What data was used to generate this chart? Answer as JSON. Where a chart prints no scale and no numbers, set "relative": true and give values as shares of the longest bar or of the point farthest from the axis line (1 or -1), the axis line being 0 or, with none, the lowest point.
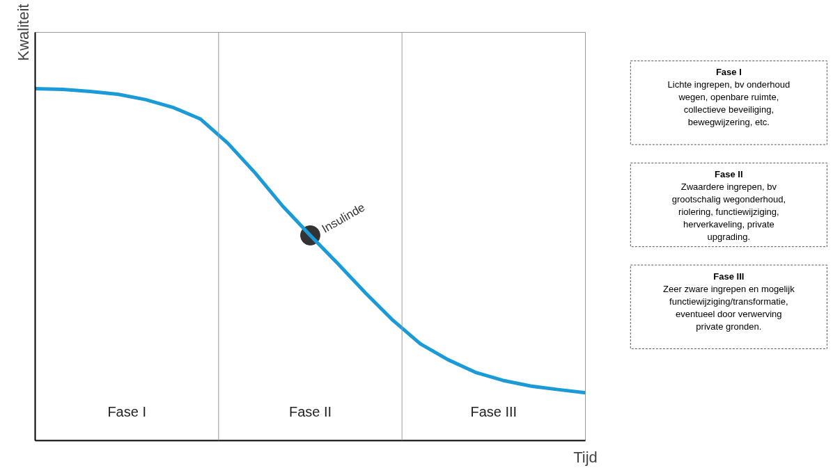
{
  "chart_data": {
    "type": "line",
    "relative": true,
    "xlabel": "Tijd",
    "ylabel": "Kwaliteit",
    "grid": false,
    "marker": "none",
    "line_style": "solid",
    "categories": [
      null,
      null,
      null,
      null,
      null,
      null,
      null,
      null,
      null,
      null,
      null,
      null,
      null,
      null,
      null,
      null,
      null,
      null,
      null,
      null,
      null
    ],
    "series": [
      {
        "color": "#1a9ad6",
        "values": [
          1.0,
          0.998,
          0.992,
          0.984,
          0.969,
          0.947,
          0.914,
          0.845,
          0.76,
          0.666,
          0.583,
          0.503,
          0.42,
          0.342,
          0.275,
          0.23,
          0.194,
          0.171,
          0.155,
          0.145,
          0.136
        ]
      }
    ],
    "annotations": [
      "Insulinde",
      "Fase I",
      "Fase II",
      "Fase III",
      "Fase I\nLichte ingrepen, bv onderhoud wegen, openbare ruimte, collectieve beveiliging, bewegwijzering, etc.",
      "Fase II\nZwaardere ingrepen, bv grootschalig wegonderhoud, riolering, functiewijziging, herverkaveling, private upgrading.",
      "Fase III\nZeer zware ingrepen en mogelijk functiewijziging/transformatie, eventueel door verwerving private gronden."
    ]
  }
}
